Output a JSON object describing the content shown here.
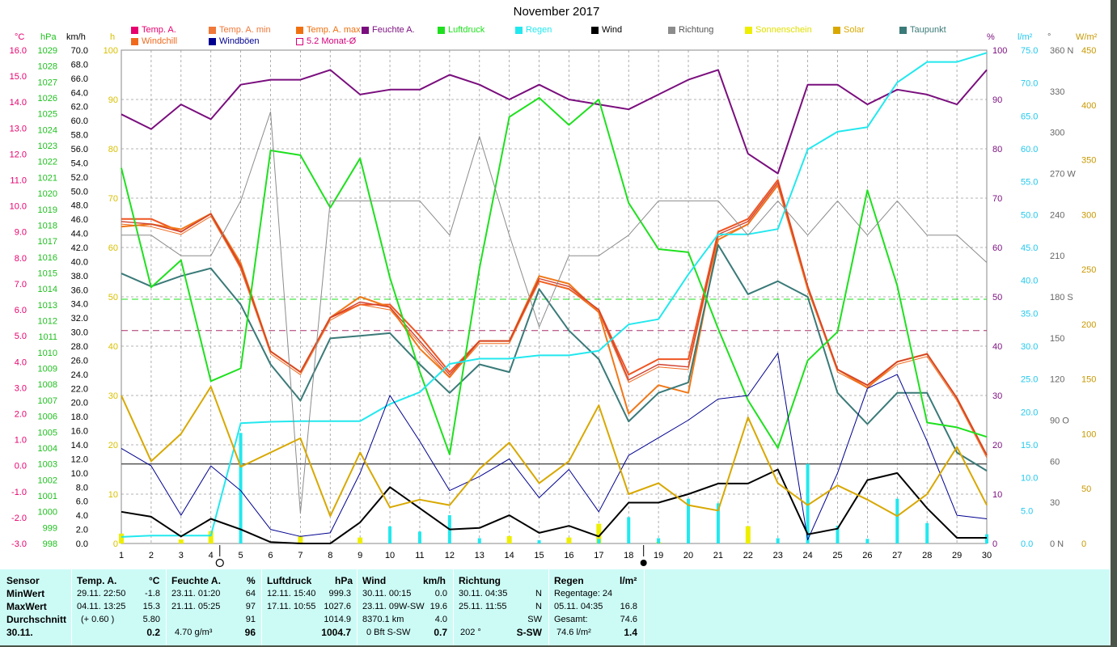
{
  "chart_data": {
    "type": "line",
    "title": "November 2017",
    "x": [
      1,
      2,
      3,
      4,
      5,
      6,
      7,
      8,
      9,
      10,
      11,
      12,
      13,
      14,
      15,
      16,
      17,
      18,
      19,
      20,
      21,
      22,
      23,
      24,
      25,
      26,
      27,
      28,
      29,
      30
    ],
    "units_top": {
      "temp": "°C",
      "pressure": "hPa",
      "wind": "km/h",
      "sun": "h",
      "humidity": "%",
      "rain": "l/m²",
      "direction": "°",
      "solar": "W/m²"
    },
    "left_axes": {
      "temp": {
        "min": -3.0,
        "max": 16.0,
        "ticks": [
          "16.0",
          "15.0",
          "14.0",
          "13.0",
          "12.0",
          "11.0",
          "10.0",
          "9.0",
          "8.0",
          "7.0",
          "6.0",
          "5.0",
          "4.0",
          "3.0",
          "2.0",
          "1.0",
          "0.0",
          "-1.0",
          "-2.0",
          "-3.0"
        ]
      },
      "pressure": {
        "min": 998,
        "max": 1029,
        "ticks": [
          "1029",
          "1028",
          "1027",
          "1026",
          "1025",
          "1024",
          "1023",
          "1022",
          "1021",
          "1020",
          "1019",
          "1018",
          "1017",
          "1016",
          "1015",
          "1014",
          "1013",
          "1012",
          "1011",
          "1010",
          "1009",
          "1008",
          "1007",
          "1006",
          "1005",
          "1004",
          "1003",
          "1002",
          "1001",
          "1000",
          "999",
          "998"
        ]
      },
      "wind": {
        "min": 0,
        "max": 70,
        "ticks": [
          "70.0",
          "68.0",
          "66.0",
          "64.0",
          "62.0",
          "60.0",
          "58.0",
          "56.0",
          "54.0",
          "52.0",
          "50.0",
          "48.0",
          "46.0",
          "44.0",
          "42.0",
          "40.0",
          "38.0",
          "36.0",
          "34.0",
          "32.0",
          "30.0",
          "28.0",
          "26.0",
          "24.0",
          "22.0",
          "20.0",
          "18.0",
          "16.0",
          "14.0",
          "12.0",
          "10.0",
          "8.0",
          "6.0",
          "4.0",
          "2.0",
          "0.0"
        ]
      },
      "sun": {
        "min": 0,
        "max": 100,
        "ticks": [
          "100",
          "90",
          "80",
          "70",
          "60",
          "50",
          "40",
          "30",
          "20",
          "10",
          "0"
        ]
      }
    },
    "right_axes": {
      "humidity": {
        "min": 0,
        "max": 100,
        "ticks": [
          "100",
          "90",
          "80",
          "70",
          "60",
          "50",
          "40",
          "30",
          "20",
          "10",
          "0"
        ]
      },
      "rain": {
        "min": 0,
        "max": 75,
        "ticks": [
          "75.0",
          "70.0",
          "65.0",
          "60.0",
          "55.0",
          "50.0",
          "45.0",
          "40.0",
          "35.0",
          "30.0",
          "25.0",
          "20.0",
          "15.0",
          "10.0",
          "5.0",
          "0.0"
        ]
      },
      "direction": {
        "min": 0,
        "max": 360,
        "ticks": [
          {
            "v": 360,
            "t": "360 N"
          },
          {
            "v": 330,
            "t": "330"
          },
          {
            "v": 300,
            "t": "300"
          },
          {
            "v": 270,
            "t": "270 W"
          },
          {
            "v": 240,
            "t": "240"
          },
          {
            "v": 210,
            "t": "210"
          },
          {
            "v": 180,
            "t": "180 S"
          },
          {
            "v": 150,
            "t": "150"
          },
          {
            "v": 120,
            "t": "120"
          },
          {
            "v": 90,
            "t": "90  O"
          },
          {
            "v": 60,
            "t": "60"
          },
          {
            "v": 30,
            "t": "30"
          },
          {
            "v": 0,
            "t": "0  N"
          }
        ]
      },
      "solar": {
        "min": 0,
        "max": 450,
        "ticks": [
          "450",
          "400",
          "350",
          "300",
          "250",
          "200",
          "150",
          "100",
          "50",
          "0"
        ]
      }
    },
    "legend": [
      {
        "name": "Temp. A.",
        "color": "#e8006e",
        "style": "fill"
      },
      {
        "name": "Temp. A. min",
        "color": "#f07838",
        "style": "fill"
      },
      {
        "name": "Temp. A. max",
        "color": "#f07010",
        "style": "fill"
      },
      {
        "name": "Feuchte A.",
        "color": "#7a0e7e",
        "style": "fill"
      },
      {
        "name": "Luftdruck",
        "color": "#1ee01e",
        "style": "fill"
      },
      {
        "name": "Regen",
        "color": "#22e8ee",
        "style": "fill"
      },
      {
        "name": "Wind",
        "color": "#000000",
        "style": "fill"
      },
      {
        "name": "Richtung",
        "color": "#8c8c8c",
        "style": "fill"
      },
      {
        "name": "Sonnenschein",
        "color": "#eeee00",
        "style": "fill"
      },
      {
        "name": "Solar",
        "color": "#d8a800",
        "style": "fill"
      },
      {
        "name": "Taupunkt",
        "color": "#3a7a78",
        "style": "fill"
      },
      {
        "name": "Windchill",
        "color": "#f06a1e",
        "style": "fill"
      },
      {
        "name": "Windböen",
        "color": "#000090",
        "style": "fill"
      },
      {
        "name": "5.2 Monat-Ø",
        "color": "#d8007a",
        "style": "outline"
      }
    ],
    "series": [
      {
        "name": "Temp. A. max",
        "axis": "temp",
        "color": "#ee5522",
        "width": 2,
        "values": [
          9.5,
          9.5,
          9.0,
          9.7,
          7.6,
          4.4,
          3.6,
          5.7,
          6.2,
          6.2,
          5.0,
          3.6,
          4.8,
          4.8,
          7.1,
          6.8,
          6.0,
          3.5,
          4.1,
          4.1,
          9.0,
          9.5,
          11.0,
          6.9,
          3.7,
          3.1,
          4.0,
          4.3,
          2.6,
          0.4
        ]
      },
      {
        "name": "Temp. A. min",
        "axis": "temp",
        "color": "#f07818",
        "width": 2,
        "values": [
          9.2,
          9.3,
          9.1,
          9.7,
          7.8,
          4.4,
          3.6,
          5.7,
          6.5,
          6.1,
          4.5,
          3.4,
          4.8,
          4.8,
          7.3,
          7.0,
          5.9,
          2.0,
          3.1,
          2.8,
          8.7,
          9.3,
          10.8,
          6.8,
          3.7,
          3.0,
          4.0,
          4.3,
          2.6,
          0.4
        ]
      },
      {
        "name": "Temp. A.",
        "axis": "temp",
        "color": "#d04030",
        "width": 1.4,
        "values": [
          9.4,
          9.3,
          9.0,
          9.7,
          7.7,
          4.4,
          3.6,
          5.7,
          6.3,
          6.1,
          4.8,
          3.5,
          4.8,
          4.8,
          7.2,
          6.9,
          6.0,
          3.3,
          3.9,
          3.8,
          8.9,
          9.4,
          10.9,
          6.9,
          3.7,
          3.1,
          4.0,
          4.3,
          2.6,
          0.4
        ]
      },
      {
        "name": "Windchill",
        "axis": "temp",
        "color": "#f06a1e",
        "width": 1,
        "values": [
          9.3,
          9.2,
          8.9,
          9.6,
          7.6,
          4.3,
          3.5,
          5.6,
          6.2,
          6.0,
          4.7,
          3.4,
          4.7,
          4.7,
          7.1,
          6.8,
          5.9,
          3.2,
          3.8,
          3.7,
          8.8,
          9.3,
          10.8,
          6.8,
          3.6,
          3.0,
          3.9,
          4.2,
          2.5,
          0.3
        ]
      },
      {
        "name": "Taupunkt",
        "axis": "temp",
        "color": "#3a7a78",
        "width": 2,
        "values": [
          7.4,
          6.9,
          7.3,
          7.6,
          6.2,
          3.9,
          2.5,
          4.9,
          5.0,
          5.1,
          3.9,
          2.8,
          3.9,
          3.6,
          6.8,
          5.2,
          4.1,
          1.7,
          2.8,
          3.2,
          8.5,
          6.6,
          7.1,
          6.5,
          2.8,
          1.6,
          2.8,
          2.8,
          0.5,
          -0.2
        ]
      },
      {
        "name": "Feuchte A.",
        "axis": "humidity",
        "color": "#7a0e7e",
        "width": 2,
        "values": [
          87,
          84,
          89,
          86,
          93,
          94,
          94,
          96,
          91,
          92,
          92,
          95,
          93,
          90,
          93,
          90,
          89,
          88,
          91,
          94,
          96,
          79,
          75,
          93,
          93,
          89,
          92,
          91,
          89,
          96
        ]
      },
      {
        "name": "Luftdruck",
        "axis": "pressure",
        "color": "#1ee01e",
        "width": 2,
        "values": [
          1021.6,
          1014.1,
          1015.8,
          1008.2,
          1009.0,
          1022.7,
          1022.4,
          1019.1,
          1022.2,
          1014.7,
          1008.8,
          1003.6,
          1015.3,
          1024.8,
          1026.0,
          1024.3,
          1025.9,
          1019.4,
          1016.5,
          1016.3,
          1011.5,
          1007.0,
          1004.0,
          1009.5,
          1011.3,
          1020.2,
          1014.2,
          1005.6,
          1005.3,
          1004.7
        ]
      },
      {
        "name": "Regen",
        "axis": "rain",
        "color": "#22e8ee",
        "width": 2,
        "values": [
          1.0,
          1.2,
          1.2,
          1.2,
          18.3,
          18.5,
          18.6,
          18.6,
          18.6,
          21.2,
          23.0,
          27.3,
          28.1,
          28.1,
          28.6,
          28.6,
          29.3,
          33.3,
          34.1,
          40.9,
          47.0,
          47.0,
          47.8,
          59.9,
          62.6,
          63.3,
          70.1,
          73.2,
          73.2,
          74.6
        ]
      },
      {
        "name": "Richtung",
        "axis": "direction",
        "color": "#8c8c8c",
        "width": 1,
        "values": [
          225,
          225,
          210,
          210,
          250,
          315,
          22,
          250,
          250,
          250,
          250,
          225,
          297,
          225,
          158,
          210,
          210,
          225,
          250,
          250,
          250,
          225,
          250,
          225,
          250,
          225,
          250,
          225,
          225,
          205
        ]
      },
      {
        "name": "Windböen",
        "axis": "wind",
        "color": "#000090",
        "width": 1,
        "values": [
          13.5,
          11.0,
          4.0,
          11.0,
          7.5,
          2.0,
          1.0,
          1.5,
          10.0,
          21.0,
          14.5,
          7.5,
          9.5,
          12.0,
          6.5,
          10.5,
          4.5,
          12.5,
          15.0,
          17.5,
          20.5,
          21.0,
          27.0,
          0.5,
          10.0,
          22.0,
          24.0,
          14.5,
          4.0,
          3.5
        ]
      },
      {
        "name": "Wind",
        "axis": "wind",
        "color": "#000000",
        "width": 2,
        "values": [
          4.5,
          3.8,
          1.0,
          3.5,
          2.0,
          0.2,
          0.0,
          0.0,
          3.0,
          8.0,
          5.0,
          2.0,
          2.2,
          4.0,
          1.5,
          2.5,
          1.0,
          5.8,
          5.8,
          7.0,
          8.5,
          8.5,
          10.5,
          1.3,
          2.1,
          9.0,
          10.0,
          5.0,
          0.8,
          0.8
        ]
      },
      {
        "name": "Solar",
        "axis": "solar",
        "color": "#d8a800",
        "width": 2,
        "values": [
          135,
          75,
          100,
          143,
          70,
          83,
          96,
          25,
          83,
          33,
          40,
          35,
          68,
          92,
          55,
          75,
          126,
          45,
          55,
          35,
          30,
          115,
          55,
          35,
          53,
          40,
          25,
          45,
          88,
          35
        ]
      }
    ],
    "rain_bars": {
      "axis": "rain",
      "color": "#22e8ee",
      "values": [
        0,
        0,
        0,
        0,
        16.8,
        0,
        0,
        0,
        0,
        2.6,
        1.8,
        4.3,
        0.8,
        0,
        0.5,
        0,
        0.7,
        4.0,
        0.8,
        6.8,
        6.1,
        0,
        0.8,
        12.1,
        2.7,
        0.7,
        6.8,
        3.1,
        0,
        1.4
      ]
    },
    "sun_bars": {
      "axis": "sun",
      "color": "#eeee00",
      "values": [
        2.0,
        0,
        0.8,
        2.5,
        0,
        0,
        1.5,
        0,
        1.2,
        0,
        0,
        0,
        0,
        1.5,
        0,
        1.2,
        4.0,
        0,
        0.3,
        0,
        0,
        3.5,
        0,
        0,
        0,
        0,
        0,
        0,
        0,
        0
      ]
    },
    "reference_lines": [
      {
        "axis": "pressure",
        "value": 1003.0,
        "color": "#555555",
        "dash": "",
        "width": 1.5
      },
      {
        "axis": "humidity",
        "value": 49.5,
        "color": "#1ee01e",
        "dash": "8,5",
        "width": 1
      },
      {
        "axis": "temp",
        "value": 5.2,
        "color": "#a8306a",
        "dash": "8,5",
        "width": 1
      }
    ],
    "markers": [
      {
        "x": 4.3,
        "shape": "open-circle"
      },
      {
        "x": 18.5,
        "shape": "filled-circle"
      }
    ]
  },
  "stats": {
    "row_labels": [
      "Sensor",
      "MinWert",
      "MaxWert",
      "Durchschnitt",
      "30.11."
    ],
    "temp": {
      "title": "Temp. A.",
      "unit": "°C",
      "min_time": "29.11.  22:50",
      "min": "-1.8",
      "max_time": "04.11.  13:25",
      "max": "15.3",
      "avg_note": "(+ 0.60 )",
      "avg": "5.80",
      "today": "0.2"
    },
    "humidity": {
      "title": "Feuchte A.",
      "unit": "%",
      "min_time": "23.11.  01:20",
      "min": "64",
      "max_time": "21.11.  05:25",
      "max": "97",
      "avg": "91",
      "today_note": "4.70 g/m³",
      "today": "96"
    },
    "pressure": {
      "title": "Luftdruck",
      "unit": "hPa",
      "min_time": "12.11.  15:40",
      "min": "999.3",
      "max_time": "17.11.  10:55",
      "max": "1027.6",
      "avg": "1014.9",
      "today": "1004.7"
    },
    "wind": {
      "title": "Wind",
      "unit": "km/h",
      "min_time": "30.11.  00:15",
      "min": "0.0",
      "max_time": "23.11.  09W-SW",
      "max": "19.6",
      "avg_note": "8370.1 km",
      "avg": "4.0",
      "today_note": "0 Bft S-SW",
      "today": "0.7"
    },
    "direction": {
      "title": "Richtung",
      "min_time": "30.11.  04:35",
      "min": "N",
      "max_time": "25.11.  11:55",
      "max": "N",
      "avg": "SW",
      "today_note": "202 °",
      "today": "S-SW"
    },
    "rain": {
      "title": "Regen",
      "unit": "l/m²",
      "min_label": "Regentage: 24",
      "max_time": "05.11.  04:35",
      "max": "16.8",
      "avg_label": "Gesamt:",
      "avg": "74.6",
      "today_note": "74.6 l/m²",
      "today": "1.4"
    }
  }
}
